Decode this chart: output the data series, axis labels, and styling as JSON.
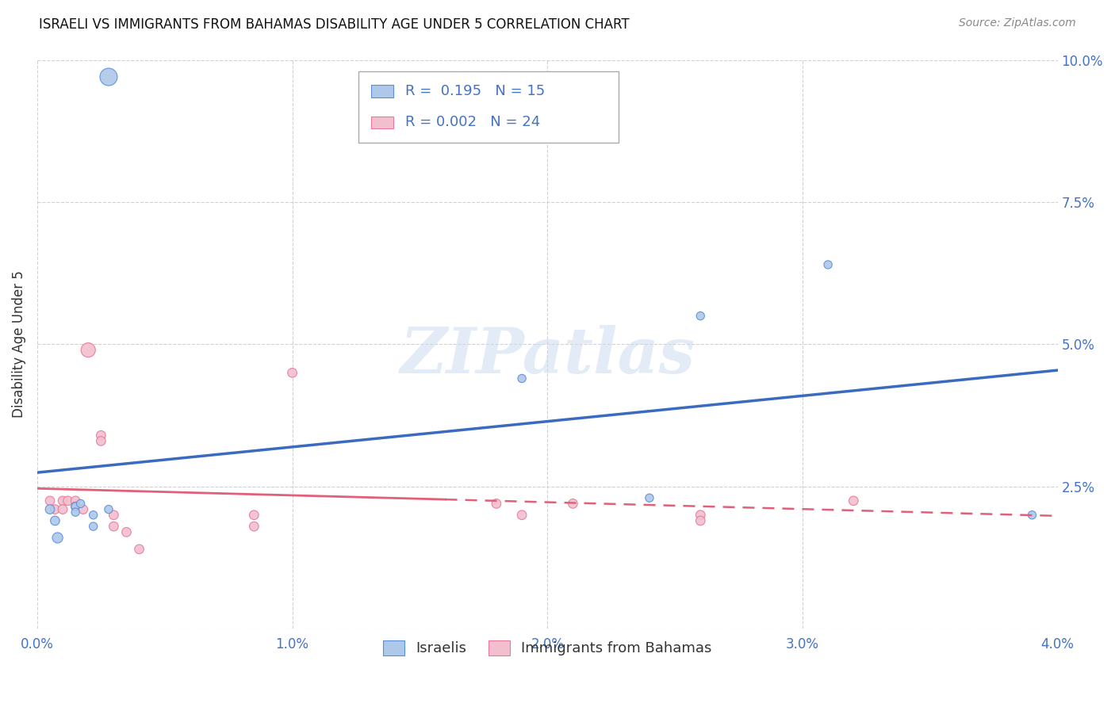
{
  "title": "ISRAELI VS IMMIGRANTS FROM BAHAMAS DISABILITY AGE UNDER 5 CORRELATION CHART",
  "source": "Source: ZipAtlas.com",
  "ylabel": "Disability Age Under 5",
  "xlim": [
    0.0,
    0.04
  ],
  "ylim": [
    0.0,
    0.1
  ],
  "xticks": [
    0.0,
    0.01,
    0.02,
    0.03,
    0.04
  ],
  "yticks": [
    0.0,
    0.025,
    0.05,
    0.075,
    0.1
  ],
  "xticklabels": [
    "0.0%",
    "1.0%",
    "2.0%",
    "3.0%",
    "4.0%"
  ],
  "yticklabels": [
    "",
    "2.5%",
    "5.0%",
    "7.5%",
    "10.0%"
  ],
  "legend_labels": [
    "Israelis",
    "Immigrants from Bahamas"
  ],
  "israeli_R": "0.195",
  "israeli_N": "15",
  "bahamas_R": "0.002",
  "bahamas_N": "24",
  "israeli_color": "#adc8e8",
  "bahamas_color": "#f2bfce",
  "israeli_edge_color": "#5b8dd9",
  "bahamas_edge_color": "#e8789a",
  "israeli_line_color": "#3a6bbf",
  "bahamas_line_color": "#e0607a",
  "background_color": "#ffffff",
  "watermark_text": "ZIPatlas",
  "israeli_points": [
    [
      0.0028,
      0.097
    ],
    [
      0.0005,
      0.021
    ],
    [
      0.0007,
      0.019
    ],
    [
      0.0008,
      0.016
    ],
    [
      0.0015,
      0.0215
    ],
    [
      0.0015,
      0.0205
    ],
    [
      0.0017,
      0.022
    ],
    [
      0.0022,
      0.02
    ],
    [
      0.0022,
      0.018
    ],
    [
      0.0028,
      0.021
    ],
    [
      0.019,
      0.044
    ],
    [
      0.024,
      0.023
    ],
    [
      0.026,
      0.055
    ],
    [
      0.031,
      0.064
    ],
    [
      0.039,
      0.02
    ]
  ],
  "israeli_sizes": [
    250,
    70,
    70,
    90,
    55,
    55,
    55,
    55,
    55,
    55,
    55,
    55,
    55,
    55,
    55
  ],
  "bahamas_points": [
    [
      0.0005,
      0.0225
    ],
    [
      0.0007,
      0.021
    ],
    [
      0.001,
      0.0225
    ],
    [
      0.001,
      0.021
    ],
    [
      0.0012,
      0.0225
    ],
    [
      0.0015,
      0.0225
    ],
    [
      0.0015,
      0.0215
    ],
    [
      0.0018,
      0.021
    ],
    [
      0.002,
      0.049
    ],
    [
      0.0025,
      0.034
    ],
    [
      0.0025,
      0.033
    ],
    [
      0.003,
      0.02
    ],
    [
      0.003,
      0.018
    ],
    [
      0.0035,
      0.017
    ],
    [
      0.004,
      0.014
    ],
    [
      0.0085,
      0.02
    ],
    [
      0.0085,
      0.018
    ],
    [
      0.01,
      0.045
    ],
    [
      0.018,
      0.022
    ],
    [
      0.019,
      0.02
    ],
    [
      0.021,
      0.022
    ],
    [
      0.026,
      0.02
    ],
    [
      0.026,
      0.019
    ],
    [
      0.032,
      0.0225
    ]
  ],
  "bahamas_sizes": [
    70,
    70,
    70,
    70,
    70,
    70,
    70,
    70,
    170,
    70,
    70,
    70,
    70,
    70,
    70,
    70,
    70,
    70,
    70,
    70,
    70,
    70,
    70,
    70
  ]
}
